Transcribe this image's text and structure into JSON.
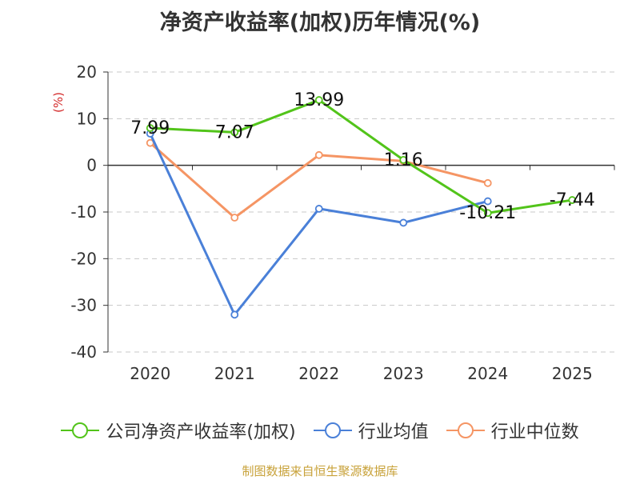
{
  "chart_data": {
    "type": "line",
    "title": "净资产收益率(加权)历年情况(%)",
    "ylabel": "(%)",
    "xlabel": "",
    "categories": [
      "2020",
      "2021",
      "2022",
      "2023",
      "2024",
      "2025"
    ],
    "ylim": [
      -40,
      20
    ],
    "yticks": [
      "20",
      "10",
      "0",
      "-10",
      "-20",
      "-30",
      "-40"
    ],
    "ytick_values": [
      20,
      10,
      0,
      -10,
      -20,
      -30,
      -40
    ],
    "grid": true,
    "legend_position": "bottom",
    "series": [
      {
        "name": "公司净资产收益率(加权)",
        "color": "#52c41a",
        "values": [
          7.99,
          7.07,
          13.99,
          1.16,
          -10.21,
          -7.44
        ],
        "labels": [
          "7.99",
          "7.07",
          "13.99",
          "1.16",
          "-10.21",
          "-7.44"
        ]
      },
      {
        "name": "行业均值",
        "color": "#4a80d8",
        "values": [
          6.8,
          -32.0,
          -9.3,
          -12.3,
          -7.7,
          null
        ]
      },
      {
        "name": "行业中位数",
        "color": "#f59564",
        "values": [
          4.8,
          -11.2,
          2.2,
          0.9,
          -3.8,
          null
        ]
      }
    ]
  },
  "source": "制图数据来自恒生聚源数据库"
}
